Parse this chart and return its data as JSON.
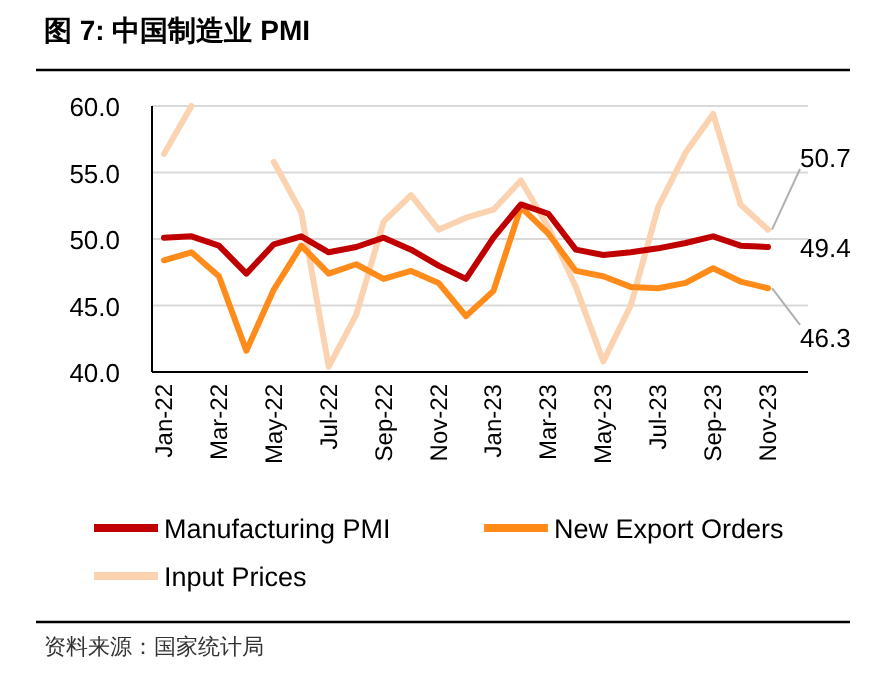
{
  "chart_data": {
    "type": "line",
    "title": "图 7: 中国制造业 PMI",
    "categories": [
      "Jan-22",
      null,
      "Mar-22",
      null,
      "May-22",
      null,
      "Jul-22",
      null,
      "Sep-22",
      null,
      "Nov-22",
      null,
      "Jan-23",
      null,
      "Mar-23",
      null,
      "May-23",
      null,
      "Jul-23",
      null,
      "Sep-23",
      null,
      "Nov-23"
    ],
    "series": [
      {
        "name": "Manufacturing PMI",
        "color": "#c00000",
        "values": [
          50.1,
          50.2,
          49.5,
          47.4,
          49.6,
          50.2,
          49.0,
          49.4,
          50.1,
          49.2,
          48.0,
          47.0,
          50.1,
          52.6,
          51.9,
          49.2,
          48.8,
          49.0,
          49.3,
          49.7,
          50.2,
          49.5,
          49.4
        ],
        "value_labels": [
          null,
          null,
          null,
          null,
          null,
          null,
          null,
          null,
          null,
          null,
          null,
          null,
          null,
          null,
          null,
          null,
          null,
          null,
          null,
          null,
          null,
          null,
          "49.4"
        ]
      },
      {
        "name": "New Export Orders",
        "color": "#ff8c1a",
        "values": [
          48.4,
          49.0,
          47.2,
          41.6,
          46.2,
          49.5,
          47.4,
          48.1,
          47.0,
          47.6,
          46.7,
          44.2,
          46.1,
          52.4,
          50.4,
          47.6,
          47.2,
          46.4,
          46.3,
          46.7,
          47.8,
          46.8,
          46.3
        ],
        "value_labels": [
          null,
          null,
          null,
          null,
          null,
          null,
          null,
          null,
          null,
          null,
          null,
          null,
          null,
          null,
          null,
          null,
          null,
          null,
          null,
          null,
          null,
          null,
          "46.3"
        ]
      },
      {
        "name": "Input Prices",
        "color": "#fbd3b0",
        "values": [
          56.4,
          60.0,
          null,
          null,
          55.8,
          52.0,
          40.4,
          44.3,
          51.3,
          53.3,
          50.7,
          51.6,
          52.2,
          54.4,
          50.9,
          46.4,
          40.8,
          45.0,
          52.4,
          56.5,
          59.4,
          52.6,
          50.7
        ],
        "value_labels": [
          null,
          null,
          null,
          null,
          null,
          null,
          null,
          null,
          null,
          null,
          null,
          null,
          null,
          null,
          null,
          null,
          null,
          null,
          null,
          null,
          null,
          null,
          "50.7"
        ]
      }
    ],
    "ylim": [
      40,
      60
    ],
    "yticks": [
      {
        "value": 40,
        "label": "40.0"
      },
      {
        "value": 45,
        "label": "45.0"
      },
      {
        "value": 50,
        "label": "50.0"
      },
      {
        "value": 55,
        "label": "55.0"
      },
      {
        "value": 60,
        "label": "60.0"
      }
    ],
    "grid": "y",
    "legend": "bottom",
    "marker": "none",
    "line_style": "solid",
    "annotations": [
      "资料来源：国家统计局"
    ]
  }
}
